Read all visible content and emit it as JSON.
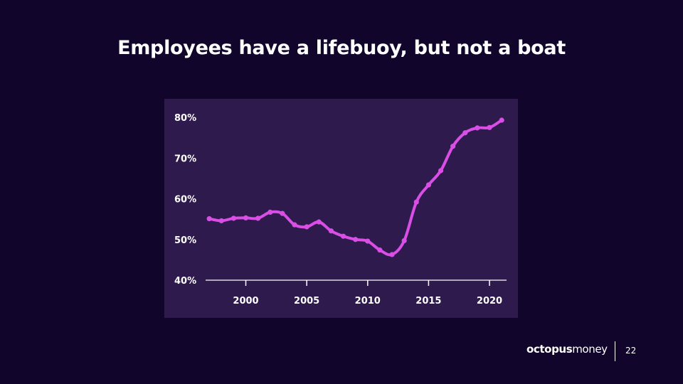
{
  "slide": {
    "title": "Employees have a lifebuoy, but not a boat",
    "logo_bold": "octopus",
    "logo_regular": "money",
    "page_number": "22"
  },
  "colors": {
    "background": "#11052c",
    "panel": "#2e1a4d",
    "line": "#d94fe6",
    "text": "#ffffff"
  },
  "chart_data": {
    "type": "line",
    "title": "",
    "xlabel": "",
    "ylabel": "",
    "x": [
      1997,
      1998,
      1999,
      2000,
      2001,
      2002,
      2003,
      2004,
      2005,
      2006,
      2007,
      2008,
      2009,
      2010,
      2011,
      2012,
      2013,
      2014,
      2015,
      2016,
      2017,
      2018,
      2019,
      2020,
      2021
    ],
    "series": [
      {
        "values": [
          55.1,
          54.6,
          55.2,
          55.3,
          55.2,
          56.7,
          56.4,
          53.6,
          53.1,
          54.3,
          52.1,
          50.8,
          50.0,
          49.6,
          47.4,
          46.3,
          49.7,
          59.2,
          63.4,
          66.9,
          72.9,
          76.2,
          77.4,
          77.5,
          79.3
        ]
      }
    ],
    "xticks": [
      2000,
      2005,
      2010,
      2015,
      2020
    ],
    "yticks": [
      40,
      50,
      60,
      70,
      80
    ],
    "ytick_labels": [
      "40%",
      "50%",
      "60%",
      "70%",
      "80%"
    ],
    "xlim": [
      1996.7,
      2021.4
    ],
    "ylim": [
      40,
      80
    ],
    "grid": false,
    "legend": "none"
  }
}
